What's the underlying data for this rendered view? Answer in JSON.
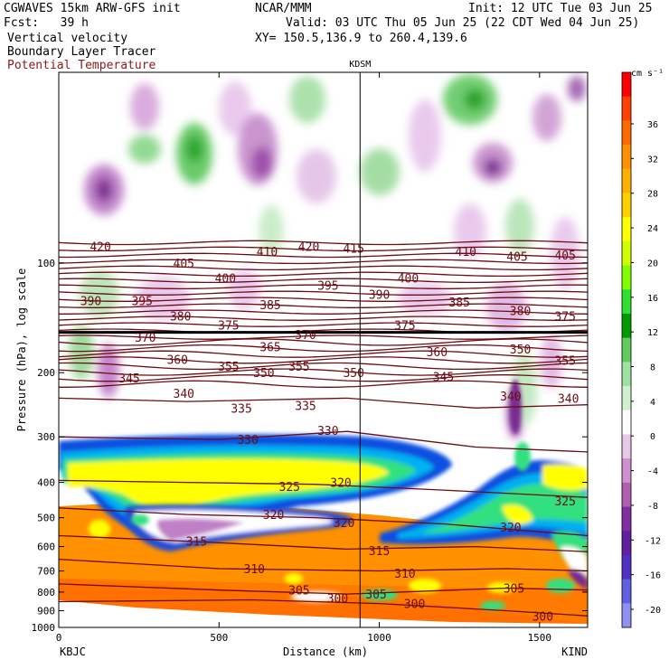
{
  "header": {
    "line1_left": "CGWAVES 15km ARW-GFS init",
    "line1_mid": "NCAR/MMM",
    "line1_right": "Init: 12 UTC Tue 03 Jun 25",
    "line2_left": "Fcst:   39 h",
    "line2_right": "Valid: 03 UTC Thu 05 Jun 25 (22 CDT Wed 04 Jun 25)",
    "line3_left": "Vertical velocity",
    "line3_right": "XY= 150.5,136.9 to 260.4,139.6",
    "line4_left": "Boundary Layer Tracer",
    "line5_left": "Potential Temperature",
    "line5_color": "#8b1a1a"
  },
  "chart_data": {
    "type": "heatmap",
    "title": "Vertical velocity / Boundary Layer Tracer / Potential Temperature",
    "xlabel": "Distance (km)",
    "ylabel": "Pressure (hPa), log scale",
    "xlim": [
      0,
      1650
    ],
    "ylim": [
      1000,
      30
    ],
    "y_scale": "log",
    "x_ticks": [
      0,
      500,
      1000,
      1500
    ],
    "y_ticks": [
      100,
      200,
      300,
      400,
      500,
      600,
      700,
      800,
      900,
      1000
    ],
    "endpoint_left": "KBJC",
    "endpoint_right": "KIND",
    "station_marker": {
      "label": "KDSM",
      "x": 940
    },
    "colorbar": {
      "unit": "cm s⁻¹",
      "levels": [
        "36",
        "32",
        "28",
        "24",
        "20",
        "16",
        "12",
        "8",
        "4",
        "0",
        "-4",
        "-8",
        "-12",
        "-16",
        "-20"
      ],
      "colors": [
        "#ff0000",
        "#ff4000",
        "#ff6a00",
        "#ff9000",
        "#ffb000",
        "#ffd000",
        "#ffff00",
        "#d0ff00",
        "#80ff00",
        "#30e030",
        "#009a00",
        "#60cc60",
        "#a0e0a0",
        "#d0f0d0",
        "#ffffff",
        "#e8c8e8",
        "#d090d0",
        "#b060b0",
        "#8030a0",
        "#6020a0",
        "#5030c0",
        "#6060e0",
        "#9090f0"
      ]
    },
    "potential_temperature_labels": [
      {
        "value": "420",
        "x": 130,
        "p": 90
      },
      {
        "value": "405",
        "x": 390,
        "p": 100
      },
      {
        "value": "410",
        "x": 650,
        "p": 93
      },
      {
        "value": "420",
        "x": 780,
        "p": 90
      },
      {
        "value": "415",
        "x": 920,
        "p": 91
      },
      {
        "value": "410",
        "x": 1270,
        "p": 93
      },
      {
        "value": "405",
        "x": 1430,
        "p": 96
      },
      {
        "value": "405",
        "x": 1580,
        "p": 95
      },
      {
        "value": "390",
        "x": 100,
        "p": 127
      },
      {
        "value": "395",
        "x": 260,
        "p": 127
      },
      {
        "value": "400",
        "x": 520,
        "p": 110
      },
      {
        "value": "395",
        "x": 840,
        "p": 115
      },
      {
        "value": "390",
        "x": 1000,
        "p": 122
      },
      {
        "value": "400",
        "x": 1090,
        "p": 110
      },
      {
        "value": "385",
        "x": 660,
        "p": 130
      },
      {
        "value": "385",
        "x": 1250,
        "p": 128
      },
      {
        "value": "380",
        "x": 380,
        "p": 140
      },
      {
        "value": "375",
        "x": 530,
        "p": 148
      },
      {
        "value": "375",
        "x": 1080,
        "p": 148
      },
      {
        "value": "380",
        "x": 1440,
        "p": 135
      },
      {
        "value": "375",
        "x": 1580,
        "p": 140
      },
      {
        "value": "370",
        "x": 270,
        "p": 160
      },
      {
        "value": "370",
        "x": 770,
        "p": 157
      },
      {
        "value": "365",
        "x": 660,
        "p": 170
      },
      {
        "value": "360",
        "x": 370,
        "p": 184
      },
      {
        "value": "355",
        "x": 530,
        "p": 192
      },
      {
        "value": "355",
        "x": 750,
        "p": 192
      },
      {
        "value": "350",
        "x": 640,
        "p": 200
      },
      {
        "value": "350",
        "x": 920,
        "p": 200
      },
      {
        "value": "345",
        "x": 220,
        "p": 207
      },
      {
        "value": "345",
        "x": 1200,
        "p": 205
      },
      {
        "value": "360",
        "x": 1180,
        "p": 175
      },
      {
        "value": "350",
        "x": 1440,
        "p": 172
      },
      {
        "value": "355",
        "x": 1580,
        "p": 185
      },
      {
        "value": "340",
        "x": 390,
        "p": 228
      },
      {
        "value": "335",
        "x": 570,
        "p": 250
      },
      {
        "value": "335",
        "x": 770,
        "p": 246
      },
      {
        "value": "340",
        "x": 1410,
        "p": 232
      },
      {
        "value": "340",
        "x": 1590,
        "p": 235
      },
      {
        "value": "330",
        "x": 590,
        "p": 305
      },
      {
        "value": "330",
        "x": 840,
        "p": 288
      },
      {
        "value": "325",
        "x": 720,
        "p": 410
      },
      {
        "value": "320",
        "x": 880,
        "p": 400
      },
      {
        "value": "320",
        "x": 670,
        "p": 490
      },
      {
        "value": "320",
        "x": 890,
        "p": 515
      },
      {
        "value": "320",
        "x": 1410,
        "p": 530
      },
      {
        "value": "325",
        "x": 1580,
        "p": 450
      },
      {
        "value": "315",
        "x": 430,
        "p": 580
      },
      {
        "value": "315",
        "x": 1000,
        "p": 615
      },
      {
        "value": "310",
        "x": 610,
        "p": 690
      },
      {
        "value": "310",
        "x": 1080,
        "p": 710
      },
      {
        "value": "305",
        "x": 750,
        "p": 790
      },
      {
        "value": "300",
        "x": 870,
        "p": 830
      },
      {
        "value": "305",
        "x": 990,
        "p": 810
      },
      {
        "value": "300",
        "x": 1110,
        "p": 860
      },
      {
        "value": "305",
        "x": 1420,
        "p": 780
      },
      {
        "value": "300",
        "x": 1510,
        "p": 930
      }
    ]
  }
}
